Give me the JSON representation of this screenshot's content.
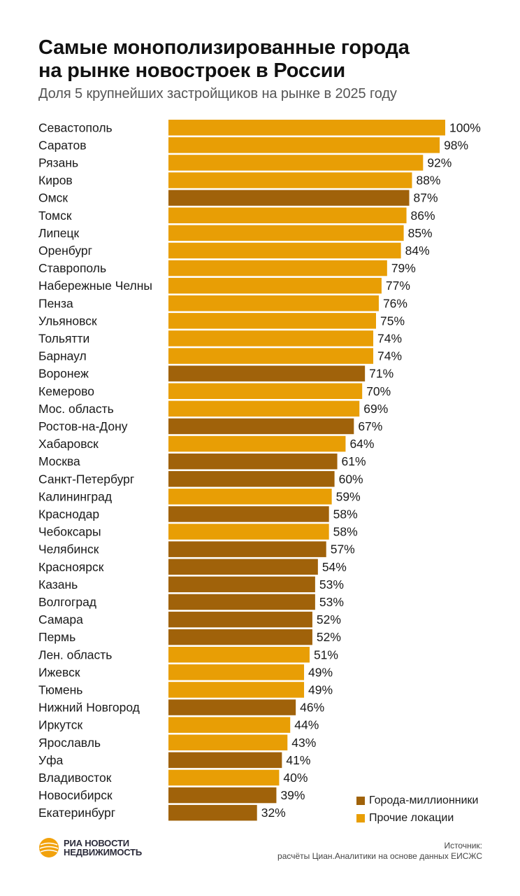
{
  "header": {
    "title_line1": "Самые монополизированные города",
    "title_line2": "на рынке новостроек в России",
    "subtitle": "Доля 5 крупнейших застройщиков на рынке в 2025 году"
  },
  "colors": {
    "millionaire": "#a0620a",
    "other": "#e89e05"
  },
  "legend": {
    "millionaire_label": "Города-миллионники",
    "other_label": "Прочие локации"
  },
  "footer": {
    "logo_line1": "РИА НОВОСТИ",
    "logo_line2": "НЕДВИЖИМОСТЬ",
    "source_line1": "Источник:",
    "source_line2": "расчёты Циан.Аналитики на основе данных ЕИСЖС"
  },
  "chart_data": {
    "type": "bar",
    "orientation": "horizontal",
    "title": "Самые монополизированные города на рынке новостроек в России",
    "subtitle": "Доля 5 крупнейших застройщиков на рынке в 2025 году",
    "xlim": [
      0,
      100
    ],
    "value_suffix": "%",
    "grid": false,
    "legend_position": "bottom-right",
    "categories": [
      "Севастополь",
      "Саратов",
      "Рязань",
      "Киров",
      "Омск",
      "Томск",
      "Липецк",
      "Оренбург",
      "Ставрополь",
      "Набережные Челны",
      "Пенза",
      "Ульяновск",
      "Тольятти",
      "Барнаул",
      "Воронеж",
      "Кемерово",
      "Мос. область",
      "Ростов-на-Дону",
      "Хабаровск",
      "Москва",
      "Санкт-Петербург",
      "Калининград",
      "Краснодар",
      "Чебоксары",
      "Челябинск",
      "Красноярск",
      "Казань",
      "Волгоград",
      "Самара",
      "Пермь",
      "Лен. область",
      "Ижевск",
      "Тюмень",
      "Нижний Новгород",
      "Иркутск",
      "Ярославль",
      "Уфа",
      "Владивосток",
      "Новосибирск",
      "Екатеринбург"
    ],
    "values": [
      100,
      98,
      92,
      88,
      87,
      86,
      85,
      84,
      79,
      77,
      76,
      75,
      74,
      74,
      71,
      70,
      69,
      67,
      64,
      61,
      60,
      59,
      58,
      58,
      57,
      54,
      53,
      53,
      52,
      52,
      51,
      49,
      49,
      46,
      44,
      43,
      41,
      40,
      39,
      32
    ],
    "groups": [
      "other",
      "other",
      "other",
      "other",
      "millionaire",
      "other",
      "other",
      "other",
      "other",
      "other",
      "other",
      "other",
      "other",
      "other",
      "millionaire",
      "other",
      "other",
      "millionaire",
      "other",
      "millionaire",
      "millionaire",
      "other",
      "millionaire",
      "other",
      "millionaire",
      "millionaire",
      "millionaire",
      "millionaire",
      "millionaire",
      "millionaire",
      "other",
      "other",
      "other",
      "millionaire",
      "other",
      "other",
      "millionaire",
      "other",
      "millionaire",
      "millionaire"
    ],
    "series_names": {
      "millionaire": "Города-миллионники",
      "other": "Прочие локации"
    }
  }
}
